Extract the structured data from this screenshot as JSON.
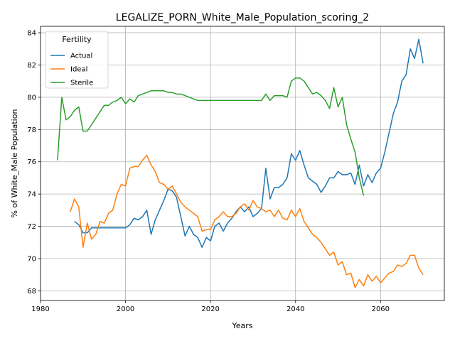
{
  "chart_data": {
    "type": "line",
    "title": "LEGALIZE_PORN_White_Male_Population_scoring_2",
    "xlabel": "Years",
    "ylabel": "% of White_Male Population",
    "xlim": [
      1980,
      2075
    ],
    "ylim": [
      67.4,
      84.4
    ],
    "xticks": [
      1980,
      2000,
      2020,
      2040,
      2060
    ],
    "yticks": [
      68,
      70,
      72,
      74,
      76,
      78,
      80,
      82,
      84
    ],
    "grid": true,
    "legend": {
      "title": "Fertility",
      "placement": "top-left"
    },
    "series": [
      {
        "name": "Actual",
        "color": "#1f77b4",
        "x": [
          1988,
          1989,
          1990,
          1991,
          1992,
          1993,
          1994,
          1995,
          1996,
          1997,
          1998,
          1999,
          2000,
          2001,
          2002,
          2003,
          2004,
          2005,
          2006,
          2007,
          2008,
          2009,
          2010,
          2011,
          2012,
          2013,
          2014,
          2015,
          2016,
          2017,
          2018,
          2019,
          2020,
          2021,
          2022,
          2023,
          2024,
          2025,
          2026,
          2027,
          2028,
          2029,
          2030,
          2031,
          2032,
          2033,
          2034,
          2035,
          2036,
          2037,
          2038,
          2039,
          2040,
          2041,
          2042,
          2043,
          2044,
          2045,
          2046,
          2047,
          2048,
          2049,
          2050,
          2051,
          2052,
          2053,
          2054,
          2055,
          2056,
          2057,
          2058,
          2059,
          2060,
          2061,
          2062,
          2063,
          2064,
          2065,
          2066,
          2067,
          2068,
          2069,
          2070
        ],
        "values": [
          72.3,
          72.1,
          71.6,
          71.6,
          71.9,
          71.9,
          71.9,
          71.9,
          71.9,
          71.9,
          71.9,
          71.9,
          71.9,
          72.1,
          72.5,
          72.4,
          72.6,
          73.0,
          71.5,
          72.4,
          73.0,
          73.6,
          74.3,
          74.2,
          73.8,
          72.6,
          71.4,
          72.0,
          71.5,
          71.3,
          70.7,
          71.3,
          71.1,
          72.0,
          72.2,
          71.7,
          72.2,
          72.5,
          72.9,
          73.2,
          72.9,
          73.2,
          72.6,
          72.8,
          73.1,
          75.6,
          73.7,
          74.4,
          74.4,
          74.6,
          75.0,
          76.5,
          76.1,
          76.7,
          75.8,
          75.0,
          74.8,
          74.6,
          74.1,
          74.5,
          75.0,
          75.0,
          75.4,
          75.2,
          75.2,
          75.3,
          74.6,
          75.8,
          74.5,
          75.2,
          74.7,
          75.3,
          75.6,
          76.6,
          77.8,
          79.0,
          79.7,
          81.0,
          81.4,
          83.0,
          82.4,
          83.6,
          82.1
        ]
      },
      {
        "name": "Ideal",
        "color": "#ff7f0e",
        "x": [
          1987,
          1988,
          1989,
          1990,
          1991,
          1992,
          1993,
          1994,
          1995,
          1996,
          1997,
          1998,
          1999,
          2000,
          2001,
          2002,
          2003,
          2004,
          2005,
          2006,
          2007,
          2008,
          2009,
          2010,
          2011,
          2012,
          2013,
          2014,
          2015,
          2016,
          2017,
          2018,
          2019,
          2020,
          2021,
          2022,
          2023,
          2024,
          2025,
          2026,
          2027,
          2028,
          2029,
          2030,
          2031,
          2032,
          2033,
          2034,
          2035,
          2036,
          2037,
          2038,
          2039,
          2040,
          2041,
          2042,
          2043,
          2044,
          2045,
          2046,
          2047,
          2048,
          2049,
          2050,
          2051,
          2052,
          2053,
          2054,
          2055,
          2056,
          2057,
          2058,
          2059,
          2060,
          2061,
          2062,
          2063,
          2064,
          2065,
          2066,
          2067,
          2068,
          2069,
          2070
        ],
        "values": [
          72.9,
          73.7,
          73.2,
          70.7,
          72.2,
          71.2,
          71.5,
          72.3,
          72.2,
          72.8,
          73.0,
          74.0,
          74.6,
          74.5,
          75.6,
          75.7,
          75.7,
          76.1,
          76.4,
          75.8,
          75.4,
          74.7,
          74.6,
          74.3,
          74.5,
          74.0,
          73.5,
          73.2,
          73.0,
          72.8,
          72.6,
          71.7,
          71.8,
          71.8,
          72.4,
          72.6,
          72.9,
          72.6,
          72.6,
          72.8,
          73.2,
          73.4,
          73.0,
          73.6,
          73.2,
          73.1,
          72.9,
          73.0,
          72.6,
          73.0,
          72.5,
          72.4,
          73.0,
          72.6,
          73.1,
          72.3,
          71.9,
          71.5,
          71.3,
          71.0,
          70.6,
          70.2,
          70.4,
          69.6,
          69.8,
          69.0,
          69.1,
          68.2,
          68.7,
          68.3,
          69.0,
          68.6,
          68.9,
          68.5,
          68.8,
          69.1,
          69.2,
          69.6,
          69.5,
          69.7,
          70.2,
          70.2,
          69.4,
          69.0
        ]
      },
      {
        "name": "Sterile",
        "color": "#2ca02c",
        "x": [
          1984,
          1985,
          1986,
          1987,
          1988,
          1989,
          1990,
          1991,
          1992,
          1993,
          1994,
          1995,
          1996,
          1997,
          1998,
          1999,
          2000,
          2001,
          2002,
          2003,
          2004,
          2005,
          2006,
          2007,
          2008,
          2009,
          2010,
          2011,
          2012,
          2013,
          2014,
          2015,
          2016,
          2017,
          2018,
          2019,
          2020,
          2021,
          2022,
          2023,
          2024,
          2025,
          2026,
          2027,
          2028,
          2029,
          2030,
          2031,
          2032,
          2033,
          2034,
          2035,
          2036,
          2037,
          2038,
          2039,
          2040,
          2041,
          2042,
          2043,
          2044,
          2045,
          2046,
          2047,
          2048,
          2049,
          2050,
          2051,
          2052,
          2053,
          2054,
          2055,
          2056
        ],
        "values": [
          76.1,
          80.0,
          78.6,
          78.8,
          79.2,
          79.4,
          77.9,
          77.9,
          78.3,
          78.7,
          79.1,
          79.5,
          79.5,
          79.7,
          79.8,
          80.0,
          79.6,
          79.9,
          79.7,
          80.1,
          80.2,
          80.3,
          80.4,
          80.4,
          80.4,
          80.4,
          80.3,
          80.3,
          80.2,
          80.2,
          80.1,
          80.0,
          79.9,
          79.8,
          79.8,
          79.8,
          79.8,
          79.8,
          79.8,
          79.8,
          79.8,
          79.8,
          79.8,
          79.8,
          79.8,
          79.8,
          79.8,
          79.8,
          79.8,
          80.2,
          79.8,
          80.1,
          80.1,
          80.1,
          80.0,
          81.0,
          81.2,
          81.2,
          81.0,
          80.6,
          80.2,
          80.3,
          80.1,
          79.8,
          79.3,
          80.6,
          79.4,
          80.0,
          78.3,
          77.4,
          76.6,
          75.0,
          73.9
        ]
      }
    ]
  }
}
